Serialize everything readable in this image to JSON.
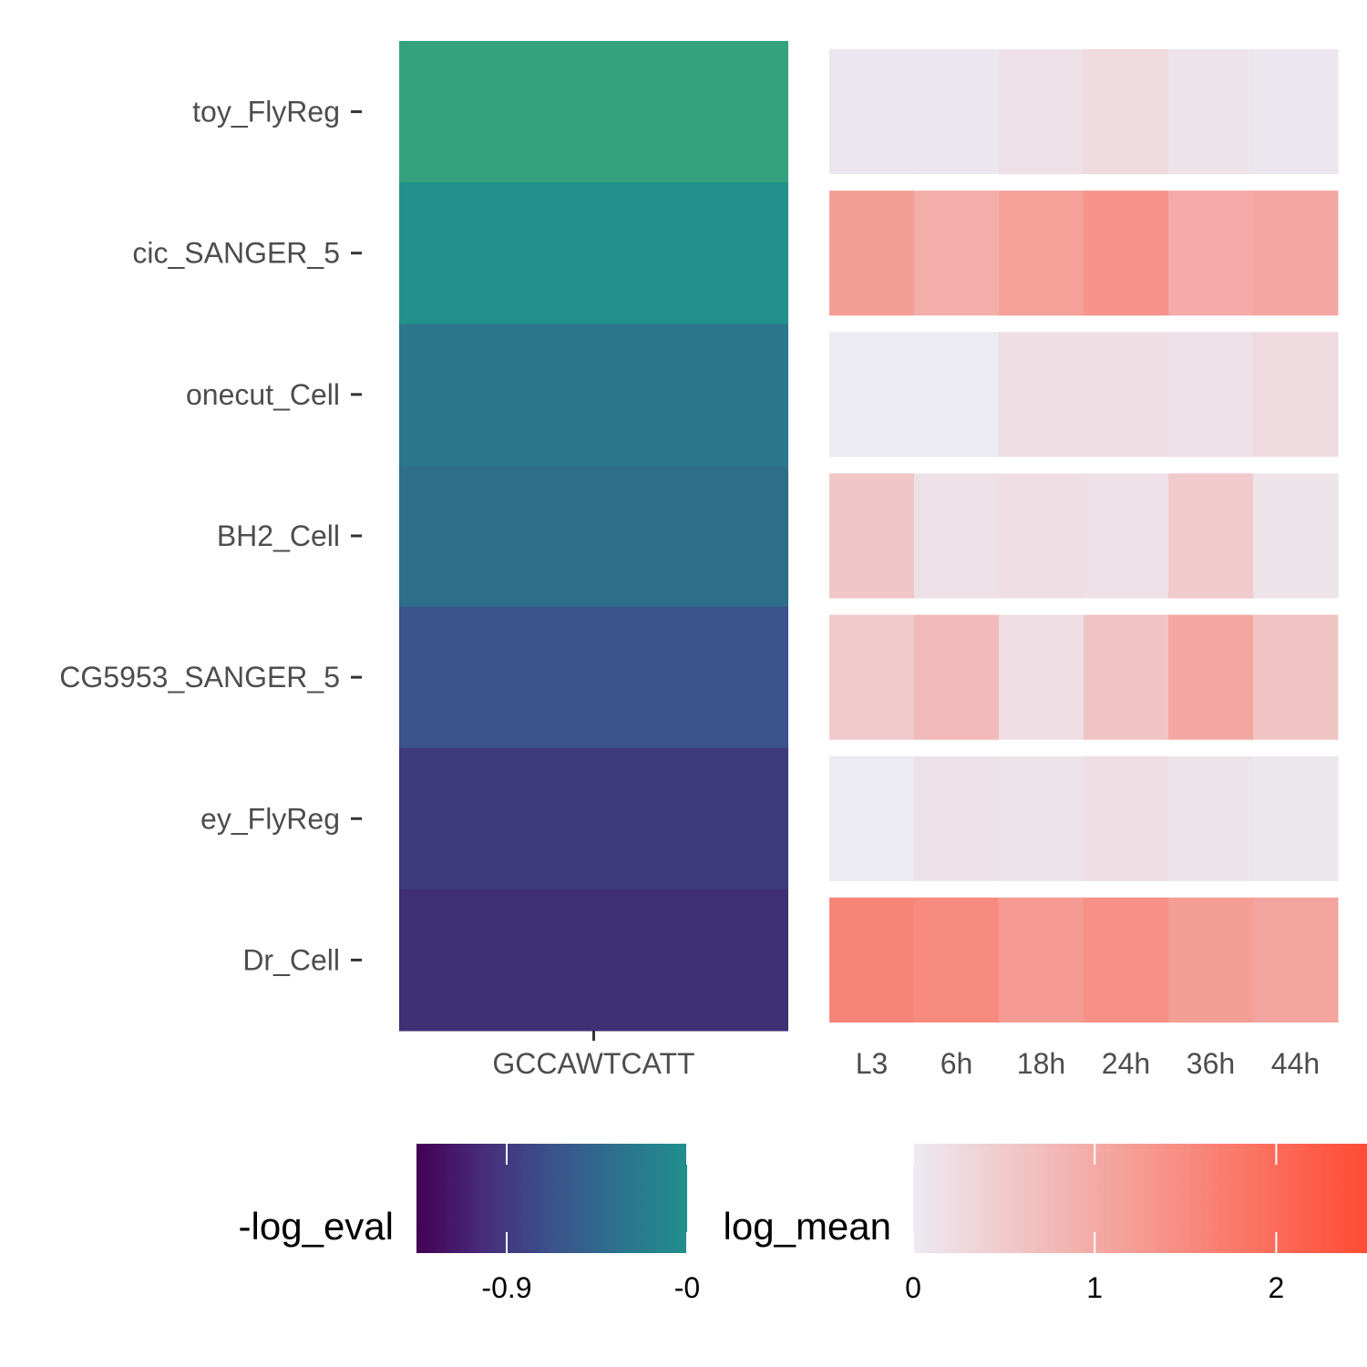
{
  "chart_data": [
    {
      "type": "heatmap",
      "x_categories": [
        "GCCAWTCATT"
      ],
      "y_categories": [
        "toy_FlyReg",
        "cic_SANGER_5",
        "onecut_Cell",
        "BH2_Cell",
        "CG5953_SANGER_5",
        "ey_FlyReg",
        "Dr_Cell"
      ],
      "values": [
        [
          -0.12
        ],
        [
          -0.28
        ],
        [
          -0.5
        ],
        [
          -0.58
        ],
        [
          -0.82
        ],
        [
          -0.97
        ],
        [
          -1.05
        ]
      ],
      "fill_label": "-log_eval",
      "colorscale": [
        "#440154",
        "#3b528b",
        "#21908c",
        "#5ec962"
      ],
      "legend": {
        "title": "-log_eval",
        "range": [
          -1.35,
          0.0
        ],
        "ticks": [
          -0.9,
          0.0
        ],
        "tick_labels": [
          "-0.9",
          "-0"
        ],
        "colors": [
          "#440154",
          "#472d7b",
          "#3b528b",
          "#2c728e",
          "#21908c"
        ]
      }
    },
    {
      "type": "heatmap",
      "x_categories": [
        "L3",
        "6h",
        "18h",
        "24h",
        "36h",
        "44h"
      ],
      "y_categories": [
        "toy_FlyReg",
        "cic_SANGER_5",
        "onecut_Cell",
        "BH2_Cell",
        "CG5953_SANGER_5",
        "ey_FlyReg",
        "Dr_Cell"
      ],
      "values": [
        [
          0.05,
          0.05,
          0.15,
          0.25,
          0.1,
          0.05
        ],
        [
          1.2,
          0.95,
          1.15,
          1.35,
          1.0,
          1.05
        ],
        [
          0.0,
          0.0,
          0.2,
          0.2,
          0.15,
          0.25
        ],
        [
          0.55,
          0.15,
          0.2,
          0.15,
          0.5,
          0.1
        ],
        [
          0.5,
          0.75,
          0.2,
          0.6,
          1.05,
          0.6
        ],
        [
          0.0,
          0.12,
          0.1,
          0.18,
          0.1,
          0.06
        ],
        [
          1.6,
          1.5,
          1.25,
          1.4,
          1.2,
          1.1
        ]
      ],
      "fill_label": "log_mean",
      "legend": {
        "title": "log_mean",
        "range": [
          0,
          2.5
        ],
        "ticks": [
          0,
          1,
          2
        ],
        "tick_labels": [
          "0",
          "1",
          "2"
        ],
        "low_color": "#eceaf2",
        "high_color": "#ff4b33"
      }
    }
  ]
}
